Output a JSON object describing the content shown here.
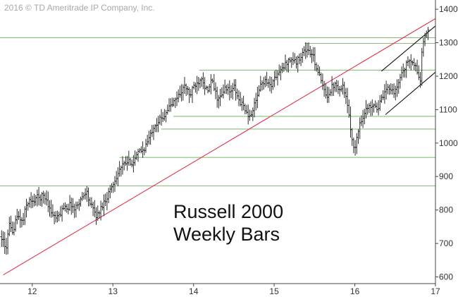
{
  "copyright": "2016 © TD Ameritrade IP Company, Inc.",
  "title_line1": "Russell 2000",
  "title_line2": "Weekly Bars",
  "chart_data": {
    "type": "line",
    "style": "weekly price bars (OHLC)",
    "title": "Russell 2000 Weekly Bars",
    "x_axis": {
      "ticks": [
        12,
        13,
        14,
        15,
        16,
        17
      ],
      "range": [
        11.6,
        17
      ]
    },
    "y_axis": {
      "ticks": [
        600,
        700,
        800,
        900,
        1000,
        1100,
        1200,
        1300,
        1400
      ],
      "range": [
        580,
        1415
      ],
      "position": "right"
    },
    "grid": false,
    "series": [
      {
        "points": [
          [
            11.62,
            720
          ],
          [
            11.67,
            680
          ],
          [
            11.72,
            760
          ],
          [
            11.75,
            720
          ],
          [
            11.79,
            770
          ],
          [
            11.84,
            780
          ],
          [
            11.88,
            760
          ],
          [
            11.92,
            810
          ],
          [
            11.96,
            830
          ],
          [
            12.0,
            820
          ],
          [
            12.05,
            840
          ],
          [
            12.09,
            835
          ],
          [
            12.13,
            845
          ],
          [
            12.18,
            830
          ],
          [
            12.22,
            800
          ],
          [
            12.27,
            780
          ],
          [
            12.31,
            775
          ],
          [
            12.35,
            790
          ],
          [
            12.4,
            815
          ],
          [
            12.44,
            805
          ],
          [
            12.48,
            820
          ],
          [
            12.52,
            800
          ],
          [
            12.58,
            825
          ],
          [
            12.63,
            840
          ],
          [
            12.67,
            860
          ],
          [
            12.71,
            820
          ],
          [
            12.76,
            800
          ],
          [
            12.8,
            780
          ],
          [
            12.84,
            800
          ],
          [
            12.88,
            820
          ],
          [
            12.92,
            835
          ],
          [
            12.96,
            860
          ],
          [
            13.0,
            875
          ],
          [
            13.04,
            900
          ],
          [
            13.08,
            920
          ],
          [
            13.13,
            935
          ],
          [
            13.17,
            940
          ],
          [
            13.21,
            945
          ],
          [
            13.25,
            940
          ],
          [
            13.29,
            960
          ],
          [
            13.33,
            975
          ],
          [
            13.38,
            980
          ],
          [
            13.42,
            1000
          ],
          [
            13.46,
            1020
          ],
          [
            13.5,
            1050
          ],
          [
            13.54,
            1060
          ],
          [
            13.58,
            1070
          ],
          [
            13.63,
            1080
          ],
          [
            13.67,
            1100
          ],
          [
            13.71,
            1110
          ],
          [
            13.75,
            1120
          ],
          [
            13.8,
            1140
          ],
          [
            13.84,
            1150
          ],
          [
            13.88,
            1170
          ],
          [
            13.92,
            1160
          ],
          [
            13.96,
            1140
          ],
          [
            14.0,
            1170
          ],
          [
            14.05,
            1180
          ],
          [
            14.1,
            1200
          ],
          [
            14.14,
            1170
          ],
          [
            14.18,
            1150
          ],
          [
            14.22,
            1190
          ],
          [
            14.26,
            1160
          ],
          [
            14.3,
            1130
          ],
          [
            14.35,
            1140
          ],
          [
            14.4,
            1170
          ],
          [
            14.45,
            1150
          ],
          [
            14.5,
            1170
          ],
          [
            14.54,
            1140
          ],
          [
            14.58,
            1120
          ],
          [
            14.63,
            1110
          ],
          [
            14.68,
            1070
          ],
          [
            14.73,
            1100
          ],
          [
            14.77,
            1120
          ],
          [
            14.81,
            1160
          ],
          [
            14.85,
            1180
          ],
          [
            14.9,
            1190
          ],
          [
            14.94,
            1170
          ],
          [
            14.98,
            1180
          ],
          [
            15.02,
            1200
          ],
          [
            15.06,
            1210
          ],
          [
            15.1,
            1220
          ],
          [
            15.15,
            1240
          ],
          [
            15.19,
            1250
          ],
          [
            15.23,
            1250
          ],
          [
            15.27,
            1240
          ],
          [
            15.31,
            1255
          ],
          [
            15.35,
            1270
          ],
          [
            15.4,
            1280
          ],
          [
            15.44,
            1270
          ],
          [
            15.48,
            1260
          ],
          [
            15.52,
            1230
          ],
          [
            15.56,
            1200
          ],
          [
            15.6,
            1170
          ],
          [
            15.64,
            1140
          ],
          [
            15.68,
            1150
          ],
          [
            15.72,
            1170
          ],
          [
            15.77,
            1180
          ],
          [
            15.81,
            1160
          ],
          [
            15.85,
            1170
          ],
          [
            15.88,
            1150
          ],
          [
            15.92,
            1090
          ],
          [
            15.96,
            1020
          ],
          [
            16.0,
            980
          ],
          [
            16.03,
            1020
          ],
          [
            16.06,
            1060
          ],
          [
            16.1,
            1080
          ],
          [
            16.14,
            1100
          ],
          [
            16.19,
            1110
          ],
          [
            16.24,
            1120
          ],
          [
            16.28,
            1100
          ],
          [
            16.33,
            1130
          ],
          [
            16.38,
            1150
          ],
          [
            16.42,
            1170
          ],
          [
            16.46,
            1160
          ],
          [
            16.5,
            1150
          ],
          [
            16.54,
            1180
          ],
          [
            16.58,
            1210
          ],
          [
            16.63,
            1230
          ],
          [
            16.67,
            1250
          ],
          [
            16.7,
            1240
          ],
          [
            16.73,
            1235
          ],
          [
            16.76,
            1225
          ],
          [
            16.79,
            1200
          ],
          [
            16.81,
            1175
          ],
          [
            16.83,
            1270
          ],
          [
            16.85,
            1300
          ],
          [
            16.88,
            1320
          ],
          [
            16.91,
            1340
          ]
        ]
      }
    ],
    "horizontal_levels": [
      {
        "y": 1315,
        "x_range": [
          11.6,
          17
        ]
      },
      {
        "y": 1298,
        "x_range": [
          15.38,
          17
        ]
      },
      {
        "y": 1218,
        "x_range": [
          14.07,
          17
        ]
      },
      {
        "y": 1080,
        "x_range": [
          13.75,
          17
        ]
      },
      {
        "y": 1042,
        "x_range": [
          13.6,
          17
        ]
      },
      {
        "y": 957,
        "x_range": [
          13.08,
          17
        ]
      },
      {
        "y": 872,
        "x_range": [
          11.6,
          17
        ]
      }
    ],
    "trendlines": [
      {
        "color": "#e0354f",
        "from": [
          11.64,
          606
        ],
        "to": [
          17.0,
          1372
        ]
      },
      {
        "color": "#111111",
        "from": [
          16.33,
          1215
        ],
        "to": [
          17.0,
          1350
        ]
      },
      {
        "color": "#111111",
        "from": [
          16.38,
          1085
        ],
        "to": [
          17.0,
          1212
        ]
      }
    ]
  }
}
